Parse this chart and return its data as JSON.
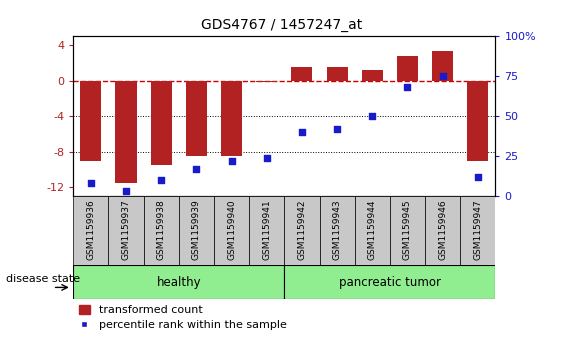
{
  "title": "GDS4767 / 1457247_at",
  "samples": [
    "GSM1159936",
    "GSM1159937",
    "GSM1159938",
    "GSM1159939",
    "GSM1159940",
    "GSM1159941",
    "GSM1159942",
    "GSM1159943",
    "GSM1159944",
    "GSM1159945",
    "GSM1159946",
    "GSM1159947"
  ],
  "transformed_count": [
    -9.0,
    -11.5,
    -9.5,
    -8.5,
    -8.5,
    -0.2,
    1.5,
    1.5,
    1.2,
    2.8,
    3.3,
    -9.0
  ],
  "percentile_rank": [
    8,
    3,
    10,
    17,
    22,
    24,
    40,
    42,
    50,
    68,
    75,
    12
  ],
  "bar_color": "#b22222",
  "dot_color": "#1a1acd",
  "dashed_line_color": "#cc0000",
  "ylim_left": [
    -13,
    5
  ],
  "ylim_right": [
    0,
    100
  ],
  "yticks_left": [
    -12,
    -8,
    -4,
    0,
    4
  ],
  "yticks_right": [
    0,
    25,
    50,
    75,
    100
  ],
  "ytick_labels_right": [
    "0",
    "25",
    "50",
    "75",
    "100%"
  ],
  "healthy_label": "healthy",
  "tumor_label": "pancreatic tumor",
  "disease_state_label": "disease state",
  "legend_bar_label": "transformed count",
  "legend_dot_label": "percentile rank within the sample",
  "group_color": "#90ee90",
  "gray_color": "#c8c8c8",
  "background_color": "#ffffff"
}
